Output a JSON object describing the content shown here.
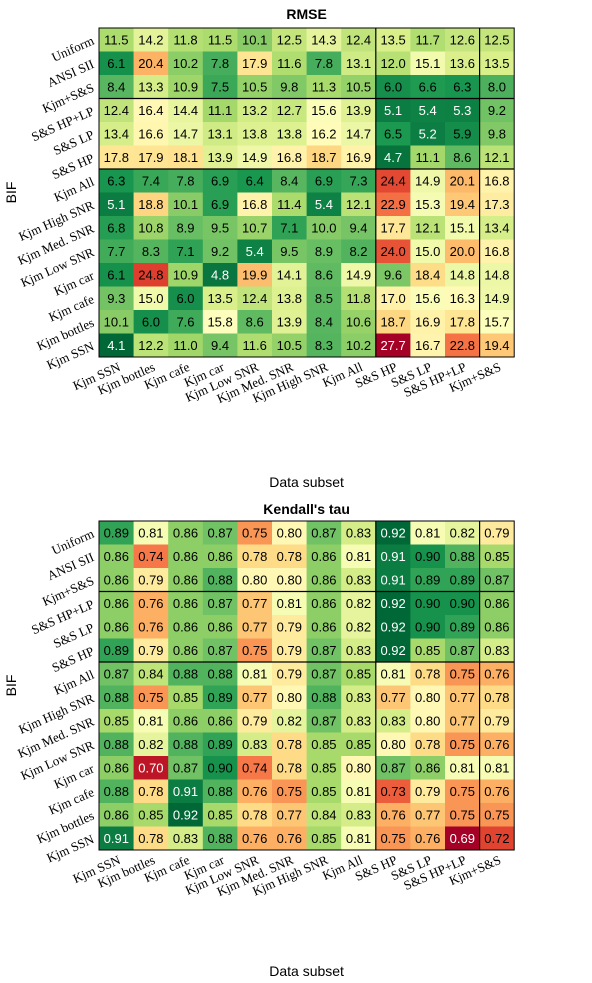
{
  "chart_data": [
    {
      "type": "heatmap",
      "title": "RMSE",
      "xlabel": "Data subset",
      "ylabel": "BIF",
      "columns": [
        "Kjm SSN",
        "Kjm bottles",
        "Kjm cafe",
        "Kjm car",
        "Kjm Low SNR",
        "Kjm Med. SNR",
        "Kjm High SNR",
        "Kjm All",
        "S&S HP",
        "S&S LP",
        "S&S HP+LP",
        "Kjm+S&S"
      ],
      "rows": [
        "Uniform",
        "ANSI SII",
        "Kjm+S&S",
        "S&S HP+LP",
        "S&S LP",
        "S&S HP",
        "Kjm All",
        "Kjm High SNR",
        "Kjm Med. SNR",
        "Kjm Low SNR",
        "Kjm car",
        "Kjm cafe",
        "Kjm bottles",
        "Kjm SSN"
      ],
      "values": [
        [
          11.5,
          14.2,
          11.8,
          11.5,
          10.1,
          12.5,
          14.3,
          12.4,
          13.5,
          11.7,
          12.6,
          12.5
        ],
        [
          6.1,
          20.4,
          10.2,
          7.8,
          17.9,
          11.6,
          7.8,
          13.1,
          12.0,
          15.1,
          13.6,
          13.5
        ],
        [
          8.4,
          13.3,
          10.9,
          7.5,
          10.5,
          9.8,
          11.3,
          10.5,
          6.0,
          6.6,
          6.3,
          8.0
        ],
        [
          12.4,
          16.4,
          14.4,
          11.1,
          13.2,
          12.7,
          15.6,
          13.9,
          5.1,
          5.4,
          5.3,
          9.2
        ],
        [
          13.4,
          16.6,
          14.7,
          13.1,
          13.8,
          13.8,
          16.2,
          14.7,
          6.5,
          5.2,
          5.9,
          9.8
        ],
        [
          17.8,
          17.9,
          18.1,
          13.9,
          14.9,
          16.8,
          18.7,
          16.9,
          4.7,
          11.1,
          8.6,
          12.1
        ],
        [
          6.3,
          7.4,
          7.8,
          6.9,
          6.4,
          8.4,
          6.9,
          7.3,
          24.4,
          14.9,
          20.1,
          16.8
        ],
        [
          5.1,
          18.8,
          10.1,
          6.9,
          16.8,
          11.4,
          5.4,
          12.1,
          22.9,
          15.3,
          19.4,
          17.3
        ],
        [
          6.8,
          10.8,
          8.9,
          9.5,
          10.7,
          7.1,
          10.0,
          9.4,
          17.7,
          12.1,
          15.1,
          13.4
        ],
        [
          7.7,
          8.3,
          7.1,
          9.2,
          5.4,
          9.5,
          8.9,
          8.2,
          24.0,
          15.0,
          20.0,
          16.8
        ],
        [
          6.1,
          24.8,
          10.9,
          4.8,
          19.9,
          14.1,
          8.6,
          14.9,
          9.6,
          18.4,
          14.8,
          14.8
        ],
        [
          9.3,
          15.0,
          6.0,
          13.5,
          12.4,
          13.8,
          8.5,
          11.8,
          17.0,
          15.6,
          16.3,
          14.9
        ],
        [
          10.1,
          6.0,
          7.6,
          15.8,
          8.6,
          13.9,
          8.4,
          10.6,
          18.7,
          16.9,
          17.8,
          15.7
        ],
        [
          4.1,
          12.2,
          11.0,
          9.4,
          11.6,
          10.5,
          8.3,
          10.2,
          27.7,
          16.7,
          22.8,
          19.4
        ]
      ],
      "colors": {
        "low": "#006837",
        "high": "#a50026"
      }
    },
    {
      "type": "heatmap",
      "title": "Kendall's tau",
      "xlabel": "Data subset",
      "ylabel": "BIF",
      "columns": [
        "Kjm SSN",
        "Kjm bottles",
        "Kjm cafe",
        "Kjm car",
        "Kjm Low SNR",
        "Kjm Med. SNR",
        "Kjm High SNR",
        "Kjm All",
        "S&S HP",
        "S&S LP",
        "S&S HP+LP",
        "Kjm+S&S"
      ],
      "rows": [
        "Uniform",
        "ANSI SII",
        "Kjm+S&S",
        "S&S HP+LP",
        "S&S LP",
        "S&S HP",
        "Kjm All",
        "Kjm High SNR",
        "Kjm Med. SNR",
        "Kjm Low SNR",
        "Kjm car",
        "Kjm cafe",
        "Kjm bottles",
        "Kjm SSN"
      ],
      "values": [
        [
          0.89,
          0.81,
          0.86,
          0.87,
          0.75,
          0.8,
          0.87,
          0.83,
          0.92,
          0.81,
          0.82,
          0.79
        ],
        [
          0.86,
          0.74,
          0.86,
          0.86,
          0.78,
          0.78,
          0.86,
          0.81,
          0.91,
          0.9,
          0.88,
          0.85
        ],
        [
          0.86,
          0.79,
          0.86,
          0.88,
          0.8,
          0.8,
          0.86,
          0.83,
          0.91,
          0.89,
          0.89,
          0.87
        ],
        [
          0.86,
          0.76,
          0.86,
          0.87,
          0.77,
          0.81,
          0.86,
          0.82,
          0.92,
          0.9,
          0.9,
          0.86
        ],
        [
          0.86,
          0.76,
          0.86,
          0.86,
          0.77,
          0.79,
          0.86,
          0.82,
          0.92,
          0.9,
          0.89,
          0.86
        ],
        [
          0.89,
          0.79,
          0.86,
          0.87,
          0.75,
          0.79,
          0.87,
          0.83,
          0.92,
          0.85,
          0.87,
          0.83
        ],
        [
          0.87,
          0.84,
          0.88,
          0.88,
          0.81,
          0.79,
          0.87,
          0.85,
          0.81,
          0.78,
          0.75,
          0.76
        ],
        [
          0.88,
          0.75,
          0.85,
          0.89,
          0.77,
          0.8,
          0.88,
          0.83,
          0.77,
          0.8,
          0.77,
          0.78
        ],
        [
          0.85,
          0.81,
          0.86,
          0.86,
          0.79,
          0.82,
          0.87,
          0.83,
          0.83,
          0.8,
          0.77,
          0.79
        ],
        [
          0.88,
          0.82,
          0.88,
          0.89,
          0.83,
          0.78,
          0.85,
          0.85,
          0.8,
          0.78,
          0.75,
          0.76
        ],
        [
          0.86,
          0.7,
          0.87,
          0.9,
          0.74,
          0.78,
          0.85,
          0.8,
          0.87,
          0.86,
          0.81,
          0.81
        ],
        [
          0.88,
          0.78,
          0.91,
          0.88,
          0.76,
          0.75,
          0.85,
          0.81,
          0.73,
          0.79,
          0.75,
          0.76
        ],
        [
          0.86,
          0.85,
          0.92,
          0.85,
          0.78,
          0.77,
          0.84,
          0.83,
          0.76,
          0.77,
          0.75,
          0.75
        ],
        [
          0.91,
          0.78,
          0.83,
          0.88,
          0.76,
          0.76,
          0.85,
          0.81,
          0.75,
          0.76,
          0.69,
          0.72
        ]
      ],
      "colors": {
        "low": "#a50026",
        "high": "#006837"
      }
    }
  ]
}
